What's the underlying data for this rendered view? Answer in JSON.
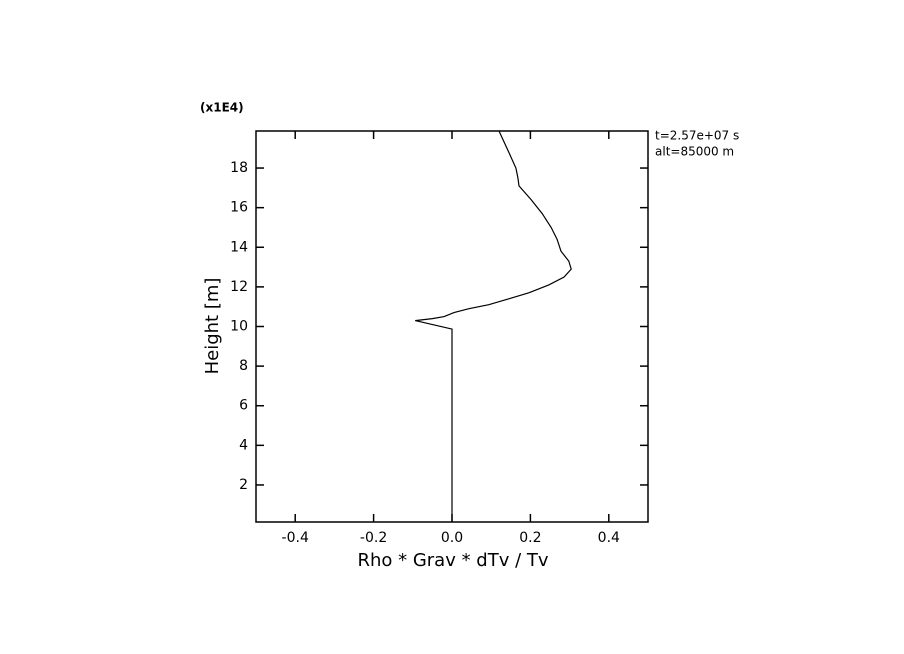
{
  "chart_data": {
    "type": "line",
    "x_label": "Rho * Grav * dTv / Tv",
    "y_label": "Height [m]",
    "y_multiplier": "(x1E4)",
    "annotations": [
      "t=2.57e+07 s",
      "alt=85000 m"
    ],
    "xlim": [
      -0.5,
      0.5
    ],
    "ylim": [
      0.13,
      19.87
    ],
    "xticks": [
      -0.4,
      -0.2,
      {
        "value": 0,
        "label": "0.0"
      },
      0.2,
      0.4
    ],
    "yticks": [
      2,
      4,
      6,
      8,
      10,
      12,
      14,
      16,
      18
    ],
    "color": "#000000",
    "y": [
      0.13,
      9.87,
      10.3,
      10.4,
      10.5,
      10.7,
      10.9,
      11.1,
      11.4,
      11.7,
      12.1,
      12.5,
      12.9,
      13.3,
      13.8,
      14.4,
      15.0,
      15.7,
      16.4,
      17.1,
      17.5,
      18.0,
      18.8,
      19.87
    ],
    "values": [
      0,
      0,
      -0.094,
      -0.05,
      -0.02,
      0.005,
      0.043,
      0.094,
      0.145,
      0.196,
      0.247,
      0.286,
      0.304,
      0.298,
      0.278,
      0.268,
      0.253,
      0.23,
      0.202,
      0.171,
      0.168,
      0.163,
      0.145,
      0.12
    ]
  }
}
